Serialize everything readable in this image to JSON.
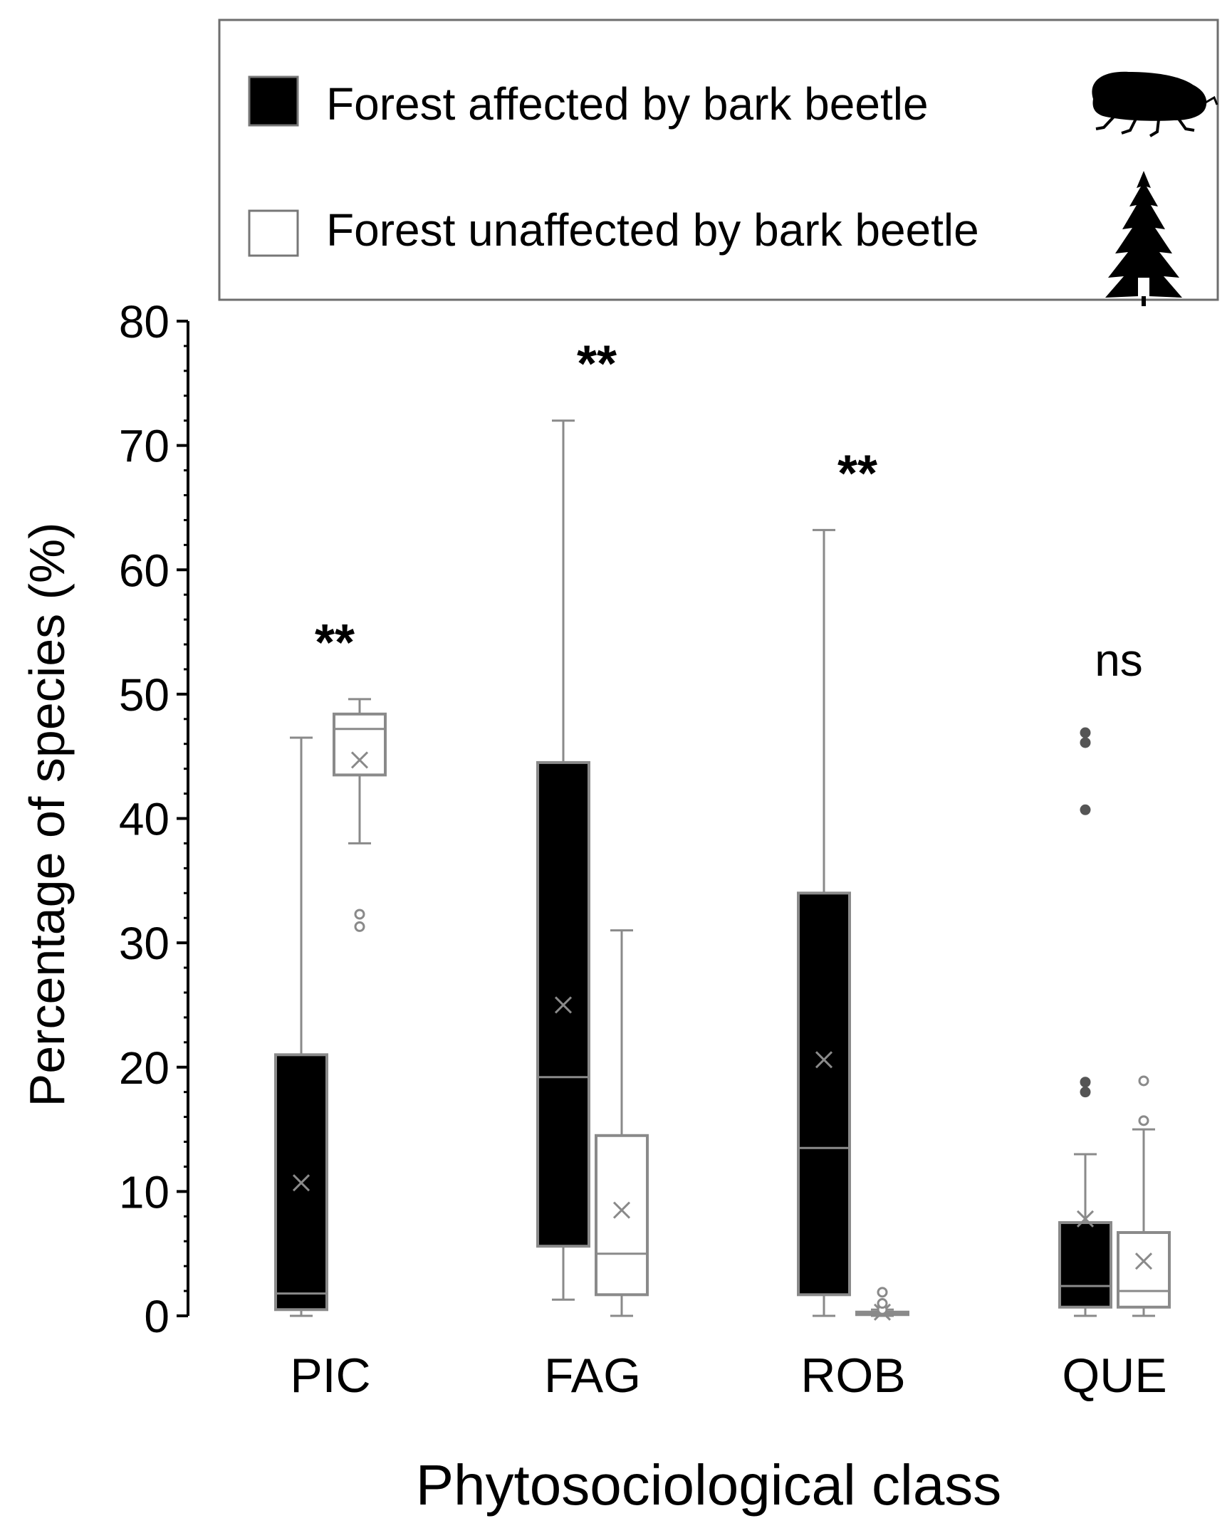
{
  "chart_data": {
    "type": "box",
    "xlabel": "Phytosociological class",
    "ylabel": "Percentage of species (%)",
    "ylim": [
      0,
      80
    ],
    "yticks": [
      0,
      10,
      20,
      30,
      40,
      50,
      60,
      70,
      80
    ],
    "categories": [
      "PIC",
      "FAG",
      "ROB",
      "QUE"
    ],
    "significance": [
      "**",
      "**",
      "**",
      "ns"
    ],
    "legend": {
      "position": "top",
      "icons": [
        "bark-beetle-icon",
        "spruce-tree-icon"
      ]
    },
    "series": [
      {
        "name": "Forest affected by bark beetle",
        "fill": "#000000",
        "boxes": [
          {
            "min": 0,
            "q1": 0.5,
            "median": 1.8,
            "q3": 21,
            "max": 46.5,
            "mean": 10.7,
            "outliers": []
          },
          {
            "min": 1.3,
            "q1": 5.6,
            "median": 19.2,
            "q3": 44.5,
            "max": 72,
            "mean": 25,
            "outliers": []
          },
          {
            "min": 0,
            "q1": 1.7,
            "median": 13.5,
            "q3": 34,
            "max": 63.2,
            "mean": 20.6,
            "outliers": []
          },
          {
            "min": 0,
            "q1": 0.7,
            "median": 2.4,
            "q3": 7.5,
            "max": 13,
            "mean": 7.8,
            "outliers": [
              18,
              18.8,
              40.7,
              46.1,
              46.9
            ]
          }
        ]
      },
      {
        "name": "Forest unaffected by bark beetle",
        "fill": "#ffffff",
        "boxes": [
          {
            "min": 38,
            "q1": 43.5,
            "median": 47.2,
            "q3": 48.4,
            "max": 49.6,
            "mean": 44.7,
            "outliers": [
              31.3,
              32.3
            ]
          },
          {
            "min": 0,
            "q1": 1.7,
            "median": 5,
            "q3": 14.5,
            "max": 31,
            "mean": 8.5,
            "outliers": []
          },
          {
            "min": 0,
            "q1": 0.1,
            "median": 0.2,
            "q3": 0.3,
            "max": 0.5,
            "mean": 0.3,
            "outliers": [
              0.5,
              1,
              1.9
            ]
          },
          {
            "min": 0,
            "q1": 0.7,
            "median": 2,
            "q3": 6.7,
            "max": 15,
            "mean": 4.4,
            "outliers": [
              15.7,
              18.9
            ]
          }
        ]
      }
    ]
  }
}
